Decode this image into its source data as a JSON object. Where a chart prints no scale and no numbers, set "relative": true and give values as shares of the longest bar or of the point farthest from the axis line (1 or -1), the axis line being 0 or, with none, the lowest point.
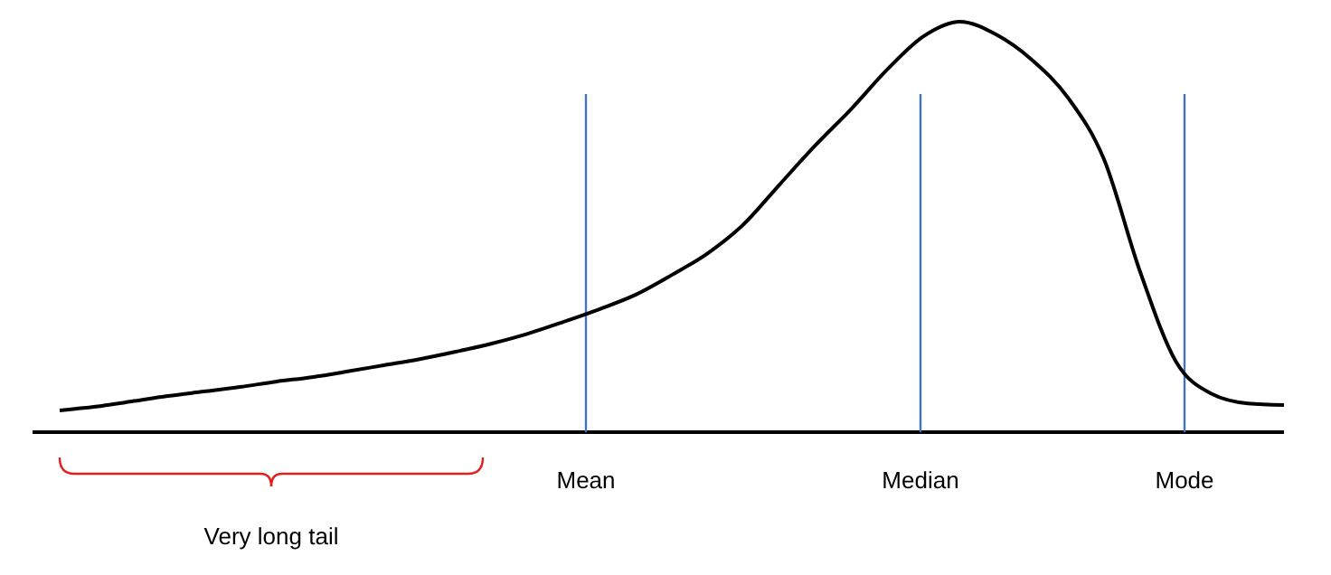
{
  "chart_data": {
    "type": "line",
    "relative": true,
    "categories": [
      null,
      null,
      null,
      null,
      null,
      null,
      null,
      null,
      null,
      null,
      null,
      null,
      null,
      null,
      null,
      null,
      null,
      null,
      null,
      null,
      null,
      null,
      null,
      null,
      null,
      null,
      null,
      null,
      null,
      null,
      null,
      null,
      null,
      null,
      null
    ],
    "series": [
      {
        "color": "#000000",
        "values": [
          0.053,
          0.062,
          0.075,
          0.088,
          0.099,
          0.11,
          0.123,
          0.134,
          0.148,
          0.163,
          0.178,
          0.196,
          0.216,
          0.24,
          0.269,
          0.3,
          0.335,
          0.383,
          0.436,
          0.507,
          0.604,
          0.7,
          0.789,
          0.885,
          0.965,
          1.0,
          0.969,
          0.907,
          0.815,
          0.665,
          0.392,
          0.172,
          0.093,
          0.07,
          0.066
        ]
      }
    ],
    "annotations": [
      "Mean",
      "Median",
      "Mode",
      "Very long tail"
    ],
    "line_style": "solid"
  }
}
